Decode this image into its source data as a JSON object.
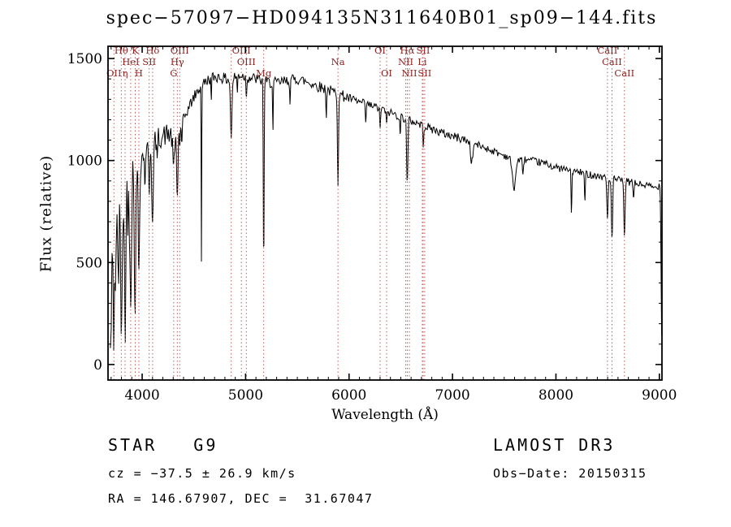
{
  "title": "spec−57097−HD094135N311640B01_sp09−144.fits",
  "axes": {
    "xlabel": "Wavelength (Å)",
    "ylabel": "Flux (relative)"
  },
  "footer": {
    "class_label": "STAR   G9",
    "survey": "LAMOST DR3",
    "cz": "cz = −37.5 ± 26.9 km/s",
    "obs_date": "Obs−Date: 20150315",
    "radec": "RA = 146.67907, DEC =  31.67047"
  },
  "colors": {
    "trace": "#000000",
    "axis": "#000000",
    "line_marker": "#c05a5a",
    "line_label": "#8b2323"
  },
  "chart_data": {
    "type": "line",
    "title": "spec−57097−HD094135N311640B01_sp09−144.fits",
    "xlabel": "Wavelength (Å)",
    "ylabel": "Flux (relative)",
    "xlim": [
      3670,
      9025
    ],
    "ylim": [
      -76,
      1560
    ],
    "xticks": [
      4000,
      5000,
      6000,
      7000,
      8000,
      9000
    ],
    "xtick_labels": [
      "4000",
      "5000",
      "6000",
      "7000",
      "8000",
      "9000"
    ],
    "x_minor_step": 100,
    "yticks": [
      0,
      500,
      1000,
      1500
    ],
    "ytick_labels": [
      "0",
      "500",
      "1000",
      "1500"
    ],
    "y_minor_step": 100,
    "grid": false,
    "legend": "none",
    "sample_step": 4,
    "seed": 42,
    "continuum": [
      [
        3693,
        20
      ],
      [
        3705,
        300
      ],
      [
        3720,
        430
      ],
      [
        3740,
        500
      ],
      [
        3760,
        520
      ],
      [
        3780,
        560
      ],
      [
        3800,
        620
      ],
      [
        3830,
        700
      ],
      [
        3860,
        800
      ],
      [
        3900,
        880
      ],
      [
        3950,
        950
      ],
      [
        4000,
        1020
      ],
      [
        4050,
        1050
      ],
      [
        4100,
        1080
      ],
      [
        4150,
        1110
      ],
      [
        4200,
        1120
      ],
      [
        4250,
        1130
      ],
      [
        4300,
        1120
      ],
      [
        4350,
        1150
      ],
      [
        4400,
        1200
      ],
      [
        4450,
        1260
      ],
      [
        4500,
        1310
      ],
      [
        4550,
        1350
      ],
      [
        4600,
        1380
      ],
      [
        4650,
        1400
      ],
      [
        4700,
        1410
      ],
      [
        4750,
        1410
      ],
      [
        4800,
        1400
      ],
      [
        4860,
        1395
      ],
      [
        4900,
        1410
      ],
      [
        4950,
        1420
      ],
      [
        5000,
        1410
      ],
      [
        5100,
        1400
      ],
      [
        5200,
        1385
      ],
      [
        5300,
        1380
      ],
      [
        5400,
        1390
      ],
      [
        5500,
        1400
      ],
      [
        5600,
        1385
      ],
      [
        5700,
        1365
      ],
      [
        5800,
        1345
      ],
      [
        5900,
        1325
      ],
      [
        6000,
        1305
      ],
      [
        6100,
        1285
      ],
      [
        6200,
        1270
      ],
      [
        6300,
        1255
      ],
      [
        6400,
        1235
      ],
      [
        6500,
        1215
      ],
      [
        6600,
        1195
      ],
      [
        6700,
        1175
      ],
      [
        6800,
        1155
      ],
      [
        6900,
        1135
      ],
      [
        7000,
        1120
      ],
      [
        7100,
        1105
      ],
      [
        7200,
        1085
      ],
      [
        7300,
        1065
      ],
      [
        7400,
        1045
      ],
      [
        7500,
        1025
      ],
      [
        7600,
        1005
      ],
      [
        7700,
        1005
      ],
      [
        7800,
        995
      ],
      [
        7900,
        985
      ],
      [
        8000,
        965
      ],
      [
        8100,
        955
      ],
      [
        8200,
        945
      ],
      [
        8300,
        935
      ],
      [
        8400,
        925
      ],
      [
        8500,
        915
      ],
      [
        8600,
        905
      ],
      [
        8700,
        895
      ],
      [
        8800,
        885
      ],
      [
        8900,
        875
      ],
      [
        8960,
        865
      ],
      [
        9000,
        880
      ],
      [
        9008,
        860
      ],
      [
        9014,
        620
      ],
      [
        9019,
        300
      ],
      [
        9022,
        160
      ]
    ],
    "absorption_features": [
      [
        3727,
        200,
        5
      ],
      [
        3798,
        350,
        6
      ],
      [
        3835,
        450,
        6
      ],
      [
        3889,
        450,
        6
      ],
      [
        3933,
        550,
        7
      ],
      [
        3968,
        500,
        7
      ],
      [
        4026,
        150,
        4
      ],
      [
        4068,
        200,
        5
      ],
      [
        4101,
        400,
        7
      ],
      [
        4144,
        120,
        4
      ],
      [
        4305,
        160,
        9
      ],
      [
        4340,
        330,
        6
      ],
      [
        4363,
        90,
        4
      ],
      [
        4383,
        120,
        4
      ],
      [
        4573,
        850,
        2.5
      ],
      [
        4668,
        120,
        3
      ],
      [
        4861,
        280,
        7
      ],
      [
        4920,
        90,
        3
      ],
      [
        5007,
        90,
        4
      ],
      [
        5175,
        900,
        4
      ],
      [
        5264,
        250,
        3
      ],
      [
        5430,
        100,
        3
      ],
      [
        5780,
        140,
        3
      ],
      [
        5893,
        430,
        5
      ],
      [
        6162,
        90,
        4
      ],
      [
        6300,
        100,
        4
      ],
      [
        6363,
        80,
        4
      ],
      [
        6495,
        100,
        3
      ],
      [
        6563,
        320,
        6
      ],
      [
        6717,
        90,
        4
      ],
      [
        7186,
        100,
        10
      ],
      [
        7594,
        140,
        16
      ],
      [
        7680,
        80,
        5
      ],
      [
        8150,
        200,
        4
      ],
      [
        8280,
        140,
        4
      ],
      [
        8498,
        200,
        6
      ],
      [
        8542,
        300,
        6
      ],
      [
        8662,
        260,
        6
      ],
      [
        8750,
        90,
        4
      ]
    ],
    "noise_segments": [
      {
        "upto": 3800,
        "amp": 300
      },
      {
        "upto": 3960,
        "amp": 190
      },
      {
        "upto": 4350,
        "amp": 55
      },
      {
        "upto": 6000,
        "amp": 28
      },
      {
        "upto": 7200,
        "amp": 22
      },
      {
        "upto": 9030,
        "amp": 18
      }
    ],
    "spectral_lines": {
      "vlines": [
        3727,
        3798,
        3835,
        3889,
        3933,
        3968,
        4068,
        4101,
        4305,
        4340,
        4363,
        4861,
        4959,
        5007,
        5175,
        5893,
        6300,
        6363,
        6548,
        6563,
        6583,
        6708,
        6716,
        6731,
        8498,
        8542,
        8662
      ],
      "labels": [
        {
          "wl": 3798,
          "text": "Hθ",
          "row": 1
        },
        {
          "wl": 3933,
          "text": "K",
          "row": 1
        },
        {
          "wl": 4101,
          "text": "Hδ",
          "row": 1
        },
        {
          "wl": 4363,
          "text": "OIII",
          "row": 1
        },
        {
          "wl": 4959,
          "text": "OIII",
          "row": 1
        },
        {
          "wl": 6300,
          "text": "OI",
          "row": 1
        },
        {
          "wl": 6563,
          "text": "Hα",
          "row": 1
        },
        {
          "wl": 6716,
          "text": "SII",
          "row": 1
        },
        {
          "wl": 8498,
          "text": "CaII",
          "row": 1
        },
        {
          "wl": 3889,
          "text": "HeI",
          "row": 2
        },
        {
          "wl": 4068,
          "text": "SII",
          "row": 2
        },
        {
          "wl": 4340,
          "text": "Hγ",
          "row": 2
        },
        {
          "wl": 5007,
          "text": "OIII",
          "row": 2
        },
        {
          "wl": 5893,
          "text": "Na",
          "row": 2
        },
        {
          "wl": 6548,
          "text": "NII",
          "row": 2
        },
        {
          "wl": 6708,
          "text": "Li",
          "row": 2
        },
        {
          "wl": 8542,
          "text": "CaII",
          "row": 2
        },
        {
          "wl": 3727,
          "text": "OII",
          "row": 3
        },
        {
          "wl": 3835,
          "text": "η",
          "row": 3
        },
        {
          "wl": 3968,
          "text": "H",
          "row": 3
        },
        {
          "wl": 4305,
          "text": "G",
          "row": 3
        },
        {
          "wl": 5175,
          "text": "Mg",
          "row": 3
        },
        {
          "wl": 6363,
          "text": "OI",
          "row": 3
        },
        {
          "wl": 6583,
          "text": "NII",
          "row": 3
        },
        {
          "wl": 6731,
          "text": "SII",
          "row": 3
        },
        {
          "wl": 8662,
          "text": "CaII",
          "row": 3
        }
      ]
    }
  }
}
